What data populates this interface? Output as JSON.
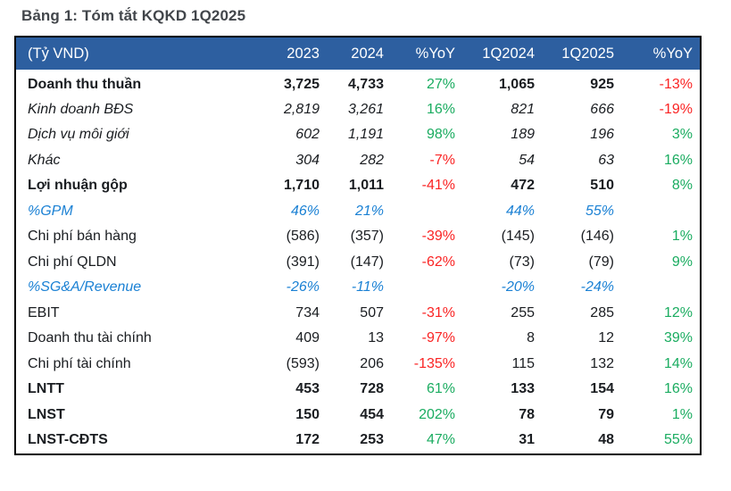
{
  "title": "Bảng 1: Tóm tắt KQKD 1Q2025",
  "table": {
    "headers": [
      "(Tỷ VND)",
      "2023",
      "2024",
      "%YoY",
      "1Q2024",
      "1Q2025",
      "%YoY"
    ],
    "rows": [
      {
        "label": "Doanh thu thuần",
        "style": "bold",
        "values": [
          "3,725",
          "4,733",
          "27%",
          "1,065",
          "925",
          "-13%"
        ]
      },
      {
        "label": "Kinh doanh BĐS",
        "style": "italic",
        "values": [
          "2,819",
          "3,261",
          "16%",
          "821",
          "666",
          "-19%"
        ]
      },
      {
        "label": "Dịch vụ môi giới",
        "style": "italic",
        "values": [
          "602",
          "1,191",
          "98%",
          "189",
          "196",
          "3%"
        ]
      },
      {
        "label": "Khác",
        "style": "italic",
        "values": [
          "304",
          "282",
          "-7%",
          "54",
          "63",
          "16%"
        ]
      },
      {
        "label": "Lợi nhuận gộp",
        "style": "bold",
        "values": [
          "1,710",
          "1,011",
          "-41%",
          "472",
          "510",
          "8%"
        ]
      },
      {
        "label": "%GPM",
        "style": "metric",
        "values": [
          "46%",
          "21%",
          "",
          "44%",
          "55%",
          ""
        ]
      },
      {
        "label": "Chi phí bán hàng",
        "style": "regular",
        "values": [
          "(586)",
          "(357)",
          "-39%",
          "(145)",
          "(146)",
          "1%"
        ]
      },
      {
        "label": "Chi phí QLDN",
        "style": "regular",
        "values": [
          "(391)",
          "(147)",
          "-62%",
          "(73)",
          "(79)",
          "9%"
        ]
      },
      {
        "label": "%SG&A/Revenue",
        "style": "metric",
        "values": [
          "-26%",
          "-11%",
          "",
          "-20%",
          "-24%",
          ""
        ]
      },
      {
        "label": "EBIT",
        "style": "regular",
        "values": [
          "734",
          "507",
          "-31%",
          "255",
          "285",
          "12%"
        ]
      },
      {
        "label": "Doanh thu tài chính",
        "style": "regular",
        "values": [
          "409",
          "13",
          "-97%",
          "8",
          "12",
          "39%"
        ]
      },
      {
        "label": "Chi phí tài chính",
        "style": "regular",
        "values": [
          "(593)",
          "206",
          "-135%",
          "115",
          "132",
          "14%"
        ]
      },
      {
        "label": "LNTT",
        "style": "bold",
        "values": [
          "453",
          "728",
          "61%",
          "133",
          "154",
          "16%"
        ]
      },
      {
        "label": "LNST",
        "style": "bold",
        "values": [
          "150",
          "454",
          "202%",
          "78",
          "79",
          "1%"
        ]
      },
      {
        "label": "LNST-CĐTS",
        "style": "bold",
        "values": [
          "172",
          "253",
          "47%",
          "31",
          "48",
          "55%"
        ]
      }
    ]
  },
  "colors": {
    "header_bg": "#2d5fa0",
    "positive": "#1aac60",
    "negative": "#fa2323",
    "metric_blue": "#1b81d4",
    "title": "#42464b"
  }
}
